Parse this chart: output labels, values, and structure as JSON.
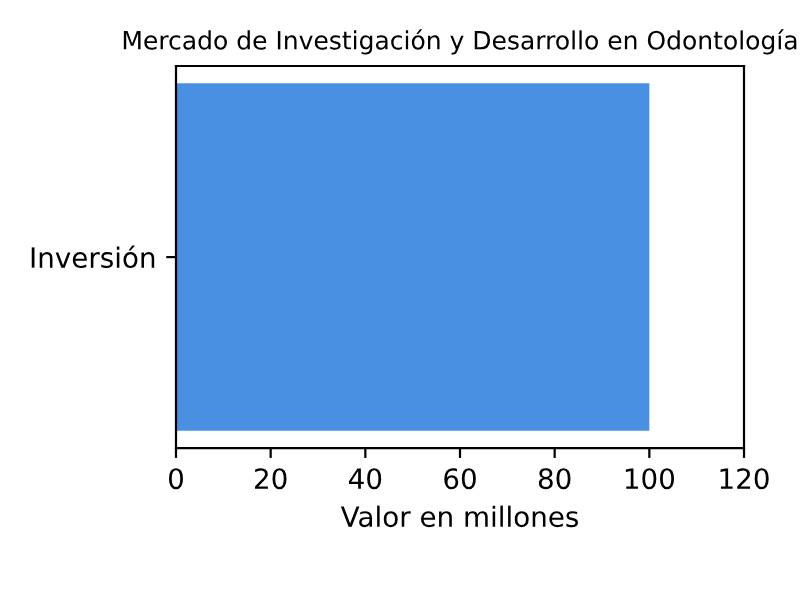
{
  "chart_data": {
    "type": "bar",
    "orientation": "horizontal",
    "title": "Mercado de Investigación y Desarrollo en Odontología",
    "xlabel": "Valor en millones",
    "categories": [
      "Inversión"
    ],
    "values": [
      100
    ],
    "color": "#4a90e2",
    "xlim": [
      0,
      120
    ],
    "xticks": [
      0,
      20,
      40,
      60,
      80,
      100,
      120
    ],
    "grid": false,
    "legend": false
  }
}
